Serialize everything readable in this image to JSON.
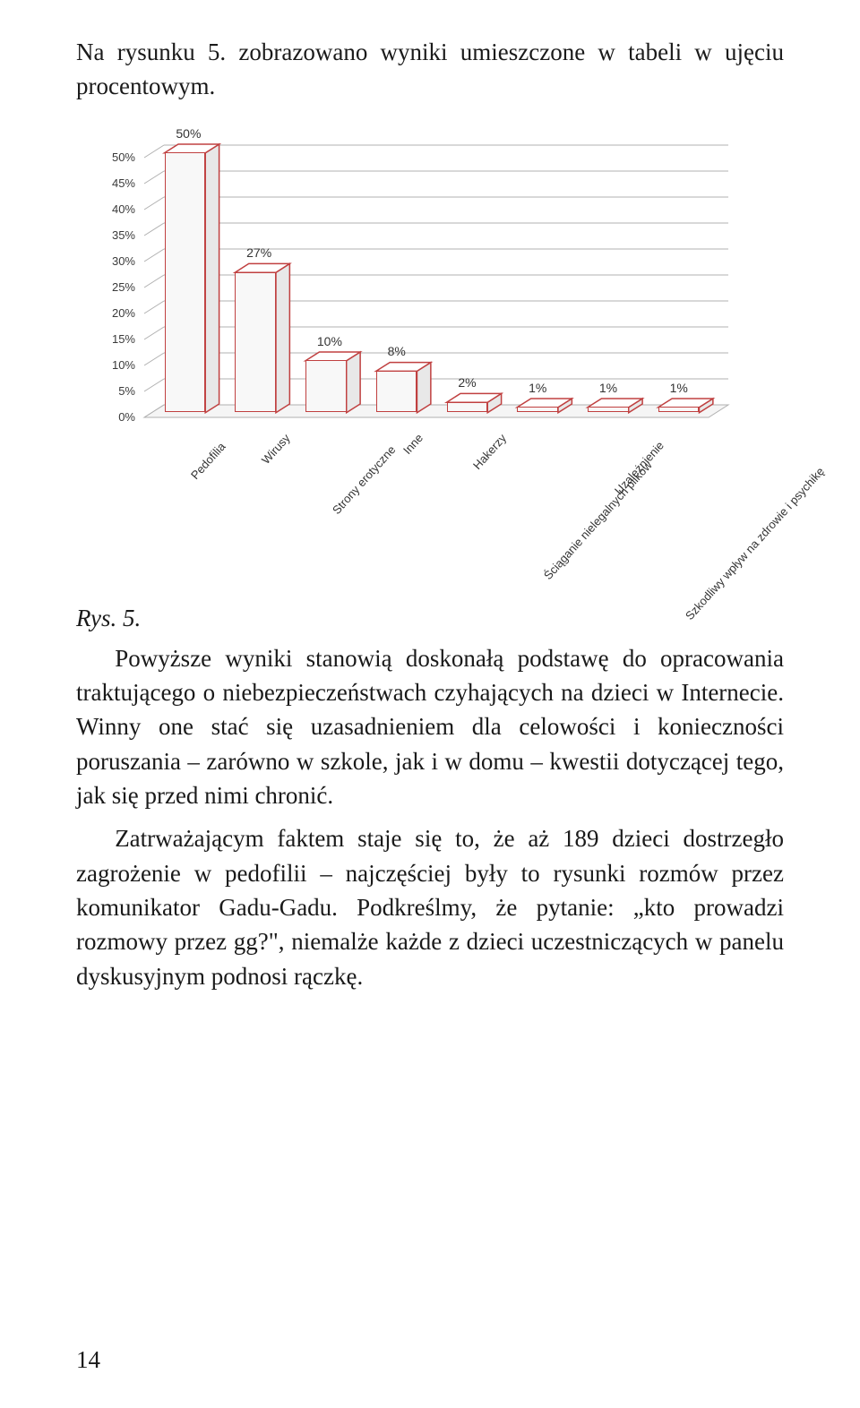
{
  "intro": "Na rysunku 5. zobrazowano wyniki umieszczone w tabeli w ujęciu procentowym.",
  "figure_label": "Rys. 5.",
  "page_number": "14",
  "paragraph1": "Powyższe wyniki stanowią doskonałą podstawę do opracowania traktującego o niebezpieczeństwach czyhających na dzieci w Internecie. Winny one stać się uzasadnieniem dla celowości i konieczności poruszania – zarówno w szkole, jak i w domu – kwestii dotyczącej tego, jak się przed nimi chronić.",
  "paragraph2": "Zatrważającym faktem staje się to, że aż 189 dzieci dostrzegło zagrożenie w pedofilii – najczęściej były to rysunki rozmów przez komunikator Gadu-Gadu. Podkreślmy, że pytanie: „kto prowadzi rozmowy przez gg?\", niemalże każde z dzieci uczestniczących w panelu dyskusyjnym podnosi rączkę.",
  "chart": {
    "type": "bar3d",
    "categories": [
      "Pedofilia",
      "Wirusy",
      "Strony erotyczne",
      "Inne",
      "Hakerzy",
      "Ściąganie nielegalnych plików",
      "Uzależnienie",
      "Szkodliwy wpływ na zdrowie i psychikę"
    ],
    "values": [
      50,
      27,
      10,
      8,
      2,
      1,
      1,
      1
    ],
    "value_labels": [
      "50%",
      "27%",
      "10%",
      "8%",
      "2%",
      "1%",
      "1%",
      "1%"
    ],
    "bar_face_color": "#f8f8f8",
    "bar_side_color": "#e8e8e8",
    "bar_top_color": "#ffffff",
    "bar_border_color": "#c04040",
    "ylim": [
      0,
      50
    ],
    "ytick_step": 5,
    "ytick_labels": [
      "0%",
      "5%",
      "10%",
      "15%",
      "20%",
      "25%",
      "30%",
      "35%",
      "40%",
      "45%",
      "50%"
    ],
    "grid_color": "#b0b0b0",
    "background_color": "#ffffff",
    "label_fontsize": 13,
    "value_fontsize": 14,
    "font_family": "Arial"
  }
}
